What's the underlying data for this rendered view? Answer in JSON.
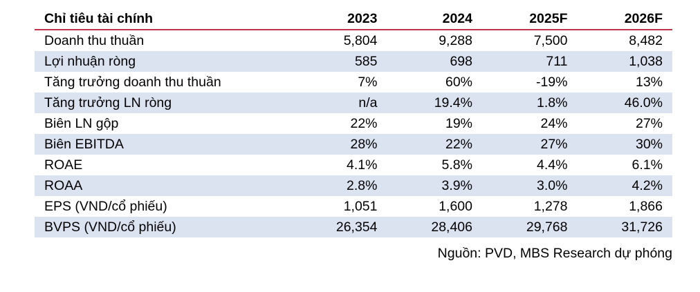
{
  "table": {
    "headers": [
      "Chỉ tiêu tài chính",
      "2023",
      "2024",
      "2025F",
      "2026F"
    ],
    "rows": [
      [
        "Doanh thu thuần",
        "5,804",
        "9,288",
        "7,500",
        "8,482"
      ],
      [
        "Lợi nhuận ròng",
        "585",
        "698",
        "711",
        "1,038"
      ],
      [
        "Tăng trưởng doanh thu thuần",
        "7%",
        "60%",
        "-19%",
        "13%"
      ],
      [
        "Tăng trưởng LN ròng",
        "n/a",
        "19.4%",
        "1.8%",
        "46.0%"
      ],
      [
        "Biên LN gộp",
        "22%",
        "19%",
        "24%",
        "27%"
      ],
      [
        "Biên EBITDA",
        "28%",
        "22%",
        "27%",
        "30%"
      ],
      [
        "ROAE",
        "4.1%",
        "5.8%",
        "4.4%",
        "6.1%"
      ],
      [
        "ROAA",
        "2.8%",
        "3.9%",
        "3.0%",
        "4.2%"
      ],
      [
        "EPS (VND/cổ phiếu)",
        "1,051",
        "1,600",
        "1,278",
        "1,866"
      ],
      [
        "BVPS (VND/cổ phiếu)",
        "26,354",
        "28,406",
        "29,768",
        "31,726"
      ]
    ]
  },
  "source_note": "Nguồn: PVD, MBS Research dự phóng",
  "colors": {
    "header_rule": "#c0314a",
    "row_shade": "#dbe3f1",
    "text": "#000000"
  }
}
